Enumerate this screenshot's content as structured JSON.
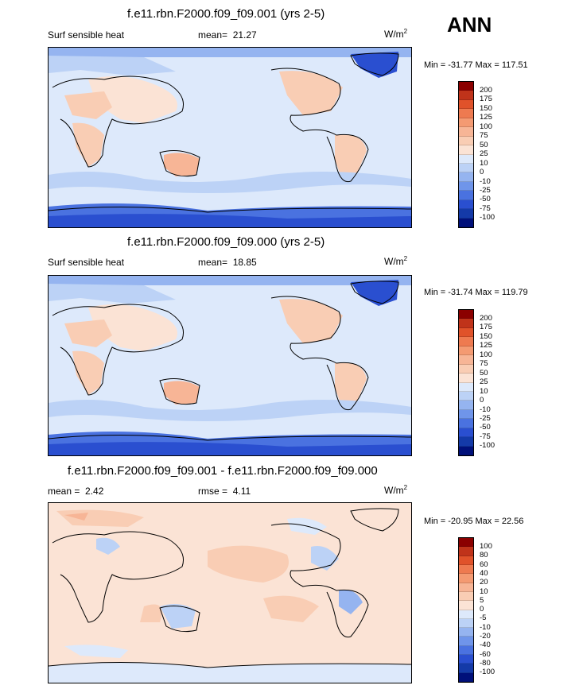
{
  "season": "ANN",
  "panels": [
    {
      "title": "f.e11.rbn.F2000.f09_f09.001 (yrs 2-5)",
      "variable": "Surf sensible heat",
      "mean_label": "mean=",
      "mean_value": "21.27",
      "units_base": "W/m",
      "units_exp": "2",
      "minmax": "Min = -31.77 Max = 117.51",
      "colorbar_labels": [
        "200",
        "175",
        "150",
        "125",
        "100",
        "75",
        "50",
        "25",
        "10",
        "0",
        "-10",
        "-25",
        "-50",
        "-75",
        "-100"
      ]
    },
    {
      "title": "f.e11.rbn.F2000.f09_f09.000 (yrs 2-5)",
      "variable": "Surf sensible heat",
      "mean_label": "mean=",
      "mean_value": "18.85",
      "units_base": "W/m",
      "units_exp": "2",
      "minmax": "Min = -31.74 Max = 119.79",
      "colorbar_labels": [
        "200",
        "175",
        "150",
        "125",
        "100",
        "75",
        "50",
        "25",
        "10",
        "0",
        "-10",
        "-25",
        "-50",
        "-75",
        "-100"
      ]
    },
    {
      "title": "f.e11.rbn.F2000.f09_f09.001 - f.e11.rbn.F2000.f09_f09.000",
      "mean_label": "mean =",
      "mean_value": "2.42",
      "rmse_label": "rmse =",
      "rmse_value": "4.11",
      "units_base": "W/m",
      "units_exp": "2",
      "minmax": "Min = -20.95 Max =  22.56",
      "colorbar_labels": [
        "100",
        "80",
        "60",
        "40",
        "20",
        "10",
        "5",
        "0",
        "-5",
        "-10",
        "-20",
        "-40",
        "-60",
        "-80",
        "-100"
      ]
    }
  ],
  "colors": {
    "abs_scale": [
      "#8b0000",
      "#c0331a",
      "#e0522a",
      "#ee7a50",
      "#f49a72",
      "#f7b596",
      "#f9cdb4",
      "#fbe3d5",
      "#dde9fb",
      "#bcd2f6",
      "#95b4f0",
      "#6f95ea",
      "#4a72e0",
      "#2a4fd0",
      "#143aa8",
      "#00107a"
    ],
    "diff_scale": [
      "#8b0000",
      "#c0331a",
      "#e0522a",
      "#ee7a50",
      "#f49a72",
      "#f7b596",
      "#f9cdb4",
      "#fbe3d5",
      "#dde9fb",
      "#bcd2f6",
      "#95b4f0",
      "#6f95ea",
      "#4a72e0",
      "#2a4fd0",
      "#143aa8",
      "#00107a"
    ]
  }
}
